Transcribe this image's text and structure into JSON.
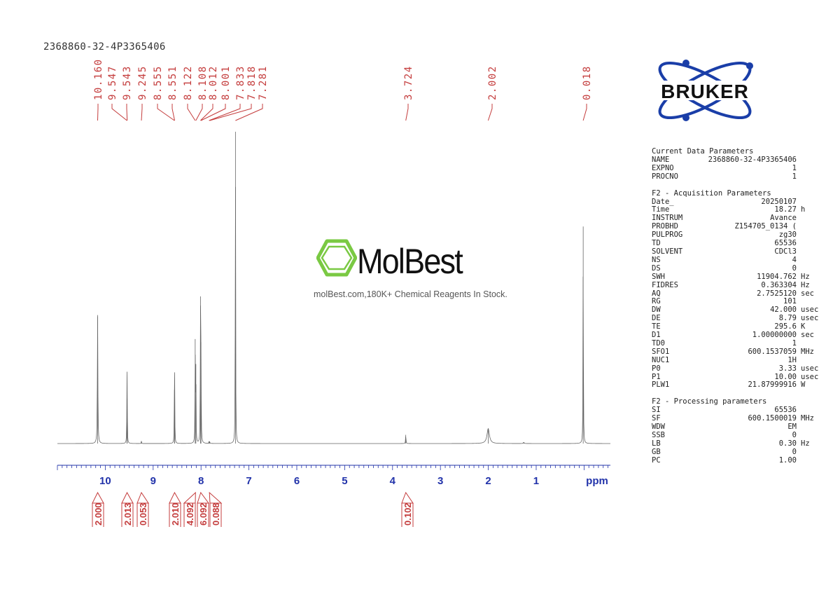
{
  "sample_id": "2368860-32-4P3365406",
  "watermark": {
    "brand": "MolBest",
    "tagline": "molBest.com,180K+ Chemical Reagents In Stock."
  },
  "logo": {
    "text": "BRUKER",
    "icon": "atom-orbit-icon"
  },
  "colors": {
    "peak_labels": "#c43c3c",
    "axis": "#2233aa",
    "integrals": "#c43c3c",
    "spectrum": "#666666",
    "watermark_green": "#7ac943"
  },
  "parameters": {
    "current": {
      "header": "Current Data Parameters",
      "rows": [
        {
          "k": "NAME",
          "v": "2368860-32-4P3365406",
          "u": ""
        },
        {
          "k": "EXPNO",
          "v": "1",
          "u": ""
        },
        {
          "k": "PROCNO",
          "v": "1",
          "u": ""
        }
      ]
    },
    "acquisition": {
      "header": "F2 - Acquisition Parameters",
      "rows": [
        {
          "k": "Date_",
          "v": "20250107",
          "u": ""
        },
        {
          "k": "Time",
          "v": "18.27",
          "u": "h"
        },
        {
          "k": "INSTRUM",
          "v": "Avance",
          "u": ""
        },
        {
          "k": "PROBHD",
          "v": "Z154705_0134 (",
          "u": ""
        },
        {
          "k": "PULPROG",
          "v": "zg30",
          "u": ""
        },
        {
          "k": "TD",
          "v": "65536",
          "u": ""
        },
        {
          "k": "SOLVENT",
          "v": "CDCl3",
          "u": ""
        },
        {
          "k": "NS",
          "v": "4",
          "u": ""
        },
        {
          "k": "DS",
          "v": "0",
          "u": ""
        },
        {
          "k": "SWH",
          "v": "11904.762",
          "u": "Hz"
        },
        {
          "k": "FIDRES",
          "v": "0.363304",
          "u": "Hz"
        },
        {
          "k": "AQ",
          "v": "2.7525120",
          "u": "sec"
        },
        {
          "k": "RG",
          "v": "101",
          "u": ""
        },
        {
          "k": "DW",
          "v": "42.000",
          "u": "usec"
        },
        {
          "k": "DE",
          "v": "8.79",
          "u": "usec"
        },
        {
          "k": "TE",
          "v": "295.6",
          "u": "K"
        },
        {
          "k": "D1",
          "v": "1.00000000",
          "u": "sec"
        },
        {
          "k": "TD0",
          "v": "1",
          "u": ""
        },
        {
          "k": "SFO1",
          "v": "600.1537059",
          "u": "MHz"
        },
        {
          "k": "NUC1",
          "v": "1H",
          "u": ""
        },
        {
          "k": "P0",
          "v": "3.33",
          "u": "usec"
        },
        {
          "k": "P1",
          "v": "10.00",
          "u": "usec"
        },
        {
          "k": "PLW1",
          "v": "21.87999916",
          "u": "W"
        }
      ]
    },
    "processing": {
      "header": "F2 - Processing parameters",
      "rows": [
        {
          "k": "SI",
          "v": "65536",
          "u": ""
        },
        {
          "k": "SF",
          "v": "600.1500019",
          "u": "MHz"
        },
        {
          "k": "WDW",
          "v": "EM",
          "u": ""
        },
        {
          "k": "SSB",
          "v": "0",
          "u": ""
        },
        {
          "k": "LB",
          "v": "0.30",
          "u": "Hz"
        },
        {
          "k": "GB",
          "v": "0",
          "u": ""
        },
        {
          "k": "PC",
          "v": "1.00",
          "u": ""
        }
      ]
    }
  },
  "chart_data": {
    "type": "line",
    "title": "2368860-32-4P3365406",
    "xlabel": "ppm",
    "xlim": [
      11.0,
      -0.55
    ],
    "x_reversed": true,
    "x_ticks": [
      10,
      9,
      8,
      7,
      6,
      5,
      4,
      3,
      2,
      1
    ],
    "peak_labels": [
      "10.160",
      "9.547",
      "9.543",
      "9.245",
      "8.555",
      "8.551",
      "8.122",
      "8.108",
      "8.012",
      "8.001",
      "7.833",
      "7.818",
      "7.281",
      "3.724",
      "2.002",
      "0.018"
    ],
    "peaks": [
      {
        "ppm": 10.16,
        "intensity": 0.412,
        "width": 0.006
      },
      {
        "ppm": 9.547,
        "intensity": 0.144,
        "width": 0.004
      },
      {
        "ppm": 9.543,
        "intensity": 0.144,
        "width": 0.004
      },
      {
        "ppm": 9.245,
        "intensity": 0.008,
        "width": 0.004
      },
      {
        "ppm": 8.555,
        "intensity": 0.172,
        "width": 0.004
      },
      {
        "ppm": 8.551,
        "intensity": 0.14,
        "width": 0.004
      },
      {
        "ppm": 8.122,
        "intensity": 0.335,
        "width": 0.004
      },
      {
        "ppm": 8.108,
        "intensity": 0.255,
        "width": 0.004
      },
      {
        "ppm": 8.012,
        "intensity": 0.472,
        "width": 0.004
      },
      {
        "ppm": 8.001,
        "intensity": 0.325,
        "width": 0.004
      },
      {
        "ppm": 7.833,
        "intensity": 0.006,
        "width": 0.004
      },
      {
        "ppm": 7.818,
        "intensity": 0.006,
        "width": 0.004
      },
      {
        "ppm": 7.281,
        "intensity": 1.0,
        "width": 0.004
      },
      {
        "ppm": 3.724,
        "intensity": 0.028,
        "width": 0.005
      },
      {
        "ppm": 2.002,
        "intensity": 0.048,
        "width": 0.03
      },
      {
        "ppm": 1.26,
        "intensity": 0.004,
        "width": 0.01
      },
      {
        "ppm": 0.018,
        "intensity": 0.696,
        "width": 0.004
      }
    ],
    "integrals": [
      {
        "label": "2.000",
        "center": 10.16
      },
      {
        "label": "2.013",
        "center": 9.545
      },
      {
        "label": "0.053",
        "center": 9.245
      },
      {
        "label": "2.010",
        "center": 8.553
      },
      {
        "label": "4.092",
        "center": 8.115
      },
      {
        "label": "6.092",
        "center": 8.006
      },
      {
        "label": "0.088",
        "center": 7.825
      },
      {
        "label": "0.102",
        "center": 3.724
      }
    ]
  }
}
